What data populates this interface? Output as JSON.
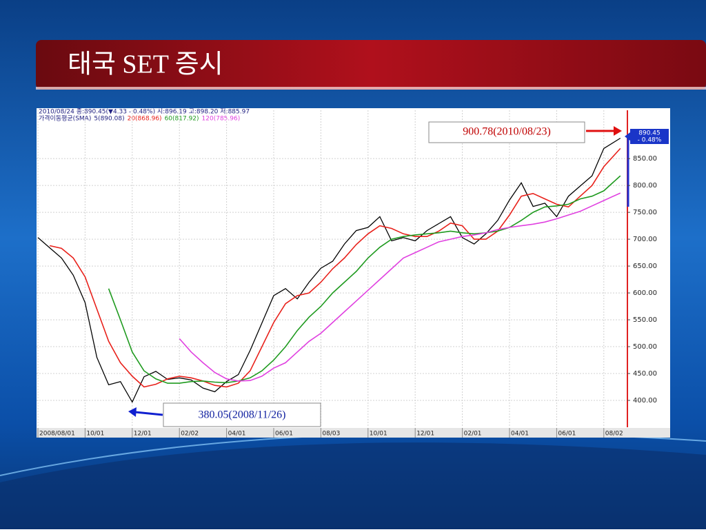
{
  "chart_data": {
    "type": "line",
    "title": "태국 SET 증시",
    "subtitle": "2010/08/24 종:890.45(▼4.33 - 0.48%) 시:896.19 고:898.20 저:885.97",
    "legend_title": "가격이동평균(SMA)",
    "categories": [
      "2008/08/01",
      null,
      null,
      null,
      "10/01",
      null,
      null,
      null,
      "12/01",
      null,
      null,
      null,
      "02/02",
      null,
      null,
      null,
      "04/01",
      null,
      null,
      null,
      "06/01",
      null,
      null,
      null,
      "08/03",
      null,
      null,
      null,
      "10/01",
      null,
      null,
      null,
      "12/01",
      null,
      null,
      null,
      "02/01",
      null,
      null,
      null,
      "04/01",
      null,
      null,
      null,
      "06/01",
      null,
      null,
      null,
      "08/02",
      null
    ],
    "series": [
      {
        "name": "5(890.08)",
        "color": "#000000",
        "values": [
          703,
          684,
          665,
          633,
          582,
          480,
          429,
          435,
          397,
          444,
          454,
          439,
          442,
          438,
          423,
          416,
          435,
          448,
          493,
          544,
          595,
          608,
          589,
          620,
          646,
          659,
          691,
          716,
          722,
          742,
          697,
          703,
          697,
          716,
          729,
          742,
          703,
          691,
          710,
          735,
          773,
          805,
          761,
          767,
          742,
          780,
          799,
          818,
          869,
          888
        ]
      },
      {
        "name": "20(868.96)",
        "color": "#e8201a",
        "values": [
          null,
          688,
          683,
          665,
          630,
          570,
          510,
          470,
          445,
          425,
          430,
          440,
          445,
          442,
          436,
          428,
          425,
          432,
          455,
          500,
          545,
          580,
          595,
          600,
          620,
          645,
          665,
          690,
          710,
          725,
          720,
          710,
          705,
          705,
          715,
          730,
          725,
          700,
          700,
          715,
          745,
          780,
          785,
          775,
          765,
          760,
          780,
          800,
          835,
          869
        ]
      },
      {
        "name": "60(817.92)",
        "color": "#1e9a1e",
        "values": [
          null,
          null,
          null,
          null,
          null,
          null,
          608,
          550,
          490,
          455,
          440,
          432,
          432,
          435,
          436,
          434,
          433,
          436,
          442,
          455,
          475,
          500,
          530,
          555,
          575,
          600,
          620,
          640,
          665,
          685,
          700,
          705,
          708,
          710,
          712,
          715,
          712,
          710,
          712,
          715,
          722,
          735,
          750,
          760,
          762,
          765,
          775,
          780,
          790,
          818
        ]
      },
      {
        "name": "120(785.96)",
        "color": "#e040e0",
        "values": [
          null,
          null,
          null,
          null,
          null,
          null,
          null,
          null,
          null,
          null,
          null,
          null,
          515,
          490,
          470,
          452,
          440,
          436,
          437,
          445,
          460,
          470,
          490,
          510,
          525,
          545,
          565,
          585,
          605,
          625,
          645,
          665,
          675,
          685,
          695,
          700,
          705,
          708,
          712,
          718,
          722,
          725,
          728,
          732,
          738,
          745,
          752,
          762,
          772,
          786
        ]
      }
    ],
    "ylim": [
      350,
      940
    ],
    "yticks": [
      {
        "value": 400,
        "label": "400.00"
      },
      {
        "value": 450,
        "label": "450.00"
      },
      {
        "value": 500,
        "label": "500.00"
      },
      {
        "value": 550,
        "label": "550.00"
      },
      {
        "value": 600,
        "label": "600.00"
      },
      {
        "value": 650,
        "label": "650.00"
      },
      {
        "value": 700,
        "label": "700.00"
      },
      {
        "value": 750,
        "label": "750.00"
      },
      {
        "value": 800,
        "label": "800.00"
      },
      {
        "value": 850,
        "label": "850.00"
      }
    ],
    "grid": true,
    "annotations": [
      "900.78(2010/08/23)",
      "380.05(2008/11/26)",
      "890.45",
      "- 0.48%"
    ]
  }
}
